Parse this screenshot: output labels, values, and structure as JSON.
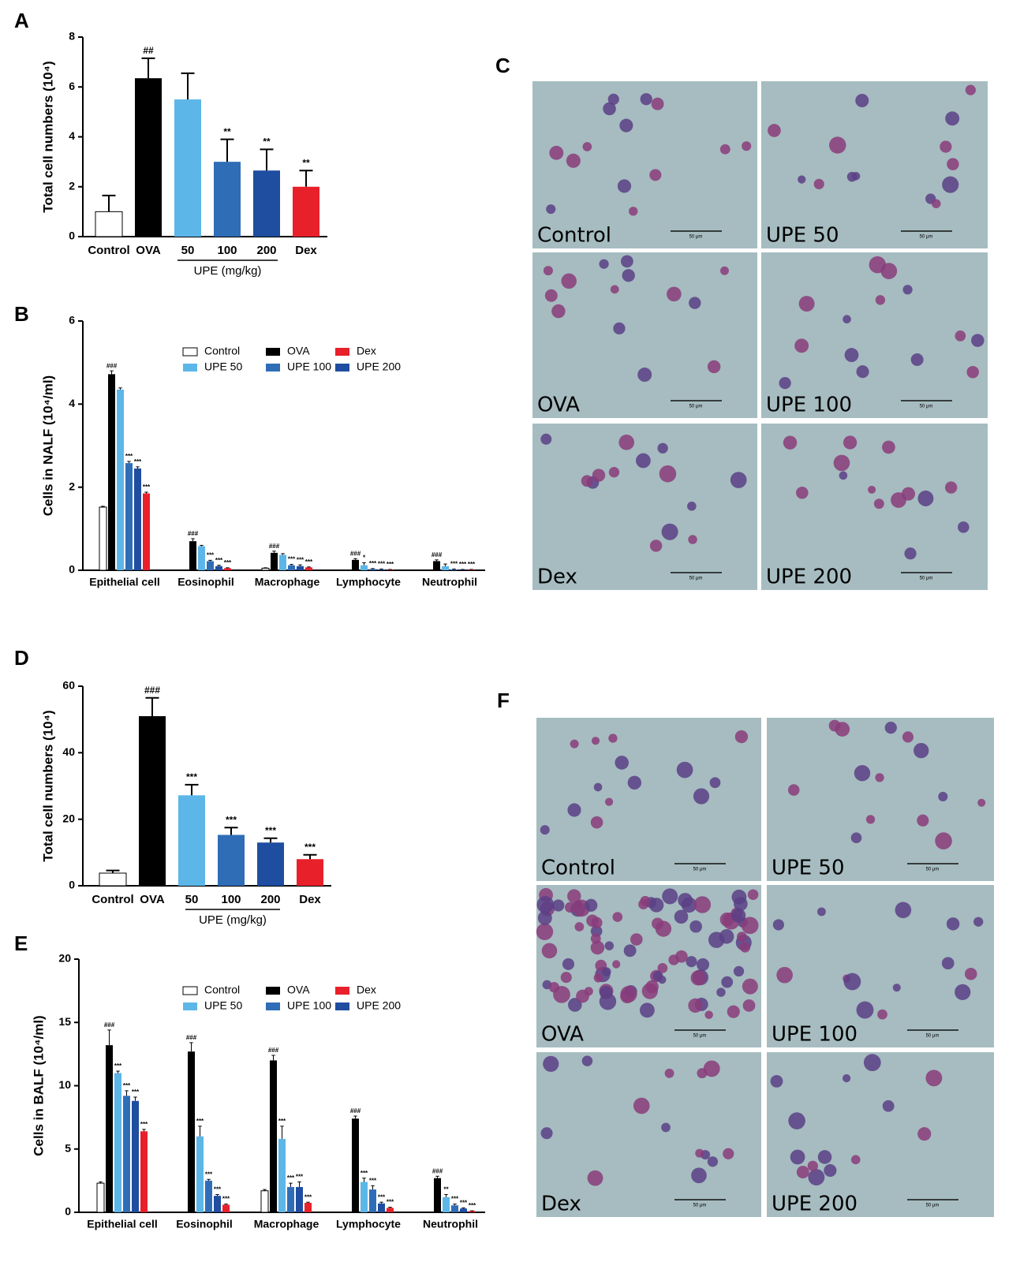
{
  "chart_data": [
    {
      "type": "bar",
      "label": "A",
      "ylabel": "Total cell numbers (10⁴)",
      "categories": [
        "Control",
        "OVA",
        "50",
        "100",
        "200",
        "Dex"
      ],
      "group_label": "UPE (mg/kg)",
      "values": [
        1.0,
        6.35,
        5.5,
        3.0,
        2.65,
        2.0
      ],
      "errors": [
        0.65,
        0.8,
        1.05,
        0.9,
        0.85,
        0.65
      ],
      "annotations": [
        null,
        "##",
        null,
        "**",
        "**",
        "**"
      ],
      "colors": [
        "#ffffff",
        "#000000",
        "#5cb6e8",
        "#2f6db7",
        "#1f4da0",
        "#e8202a"
      ],
      "ylim": [
        0,
        8
      ],
      "yticks": [
        0,
        2,
        4,
        6,
        8
      ]
    },
    {
      "type": "bar",
      "label": "B",
      "ylabel": "Cells in NALF (10⁴/ml)",
      "categories": [
        "Epithelial cell",
        "Eosinophil",
        "Macrophage",
        "Lymphocyte",
        "Neutrophil"
      ],
      "series": [
        {
          "name": "Control",
          "color": "#ffffff",
          "values": [
            1.52,
            0,
            0.05,
            0,
            0
          ],
          "errors": [
            0.02,
            0,
            0.01,
            0,
            0
          ],
          "annotations": [
            null,
            null,
            null,
            null,
            null
          ]
        },
        {
          "name": "OVA",
          "color": "#000000",
          "values": [
            4.72,
            0.7,
            0.42,
            0.25,
            0.22
          ],
          "errors": [
            0.08,
            0.06,
            0.04,
            0.03,
            0.03
          ],
          "annotations": [
            "###",
            "###",
            "###",
            "###",
            "###"
          ]
        },
        {
          "name": "UPE 50",
          "color": "#5cb6e8",
          "values": [
            4.35,
            0.58,
            0.37,
            0.12,
            0.1
          ],
          "errors": [
            0.04,
            0.02,
            0.03,
            0.06,
            0.05
          ],
          "annotations": [
            null,
            null,
            null,
            "*",
            null
          ]
        },
        {
          "name": "UPE 100",
          "color": "#2f6db7",
          "values": [
            2.58,
            0.22,
            0.12,
            0.03,
            0.02
          ],
          "errors": [
            0.04,
            0.02,
            0.02,
            0.01,
            0.01
          ],
          "annotations": [
            "***",
            "***",
            "***",
            "***",
            "***"
          ]
        },
        {
          "name": "UPE 200",
          "color": "#1f4da0",
          "values": [
            2.45,
            0.1,
            0.1,
            0.02,
            0.01
          ],
          "errors": [
            0.04,
            0.02,
            0.03,
            0.01,
            0.01
          ],
          "annotations": [
            "***",
            "***",
            "***",
            "***",
            "***"
          ]
        },
        {
          "name": "Dex",
          "color": "#e8202a",
          "values": [
            1.85,
            0.05,
            0.07,
            0.01,
            0.01
          ],
          "errors": [
            0.03,
            0.01,
            0.01,
            0.01,
            0.01
          ],
          "annotations": [
            "***",
            "***",
            "***",
            "***",
            "***"
          ]
        }
      ],
      "ylim": [
        0,
        6
      ],
      "yticks": [
        0,
        2,
        4,
        6
      ]
    },
    {
      "type": "bar",
      "label": "D",
      "ylabel": "Total cell numbers (10⁴)",
      "categories": [
        "Control",
        "OVA",
        "50",
        "100",
        "200",
        "Dex"
      ],
      "group_label": "UPE (mg/kg)",
      "values": [
        3.8,
        51,
        27.2,
        15.3,
        13.0,
        8.0
      ],
      "errors": [
        0.8,
        5.5,
        3.2,
        2.2,
        1.3,
        1.3
      ],
      "annotations": [
        null,
        "###",
        "***",
        "***",
        "***",
        "***"
      ],
      "colors": [
        "#ffffff",
        "#000000",
        "#5cb6e8",
        "#2f6db7",
        "#1f4da0",
        "#e8202a"
      ],
      "ylim": [
        0,
        60
      ],
      "yticks": [
        0,
        20,
        40,
        60
      ]
    },
    {
      "type": "bar",
      "label": "E",
      "ylabel": "Cells in BALF (10⁴/ml)",
      "categories": [
        "Epithelial cell",
        "Eosinophil",
        "Macrophage",
        "Lymphocyte",
        "Neutrophil"
      ],
      "series": [
        {
          "name": "Control",
          "color": "#ffffff",
          "values": [
            2.3,
            0,
            1.7,
            0,
            0
          ],
          "errors": [
            0.1,
            0,
            0.1,
            0,
            0
          ],
          "annotations": [
            null,
            null,
            null,
            null,
            null
          ]
        },
        {
          "name": "OVA",
          "color": "#000000",
          "values": [
            13.2,
            12.7,
            12.0,
            7.4,
            2.7
          ],
          "errors": [
            1.2,
            0.7,
            0.4,
            0.2,
            0.15
          ],
          "annotations": [
            "###",
            "###",
            "###",
            "###",
            "###"
          ]
        },
        {
          "name": "UPE 50",
          "color": "#5cb6e8",
          "values": [
            11.0,
            6.0,
            5.8,
            2.4,
            1.2
          ],
          "errors": [
            0.15,
            0.8,
            1.0,
            0.3,
            0.2
          ],
          "annotations": [
            "***",
            "***",
            "***",
            "***",
            "**"
          ]
        },
        {
          "name": "UPE 100",
          "color": "#2f6db7",
          "values": [
            9.2,
            2.5,
            2.0,
            1.8,
            0.55
          ],
          "errors": [
            0.4,
            0.1,
            0.3,
            0.3,
            0.1
          ],
          "annotations": [
            "***",
            "***",
            "***",
            "***",
            "***"
          ]
        },
        {
          "name": "UPE 200",
          "color": "#1f4da0",
          "values": [
            8.8,
            1.3,
            2.0,
            0.7,
            0.3
          ],
          "errors": [
            0.3,
            0.1,
            0.4,
            0.1,
            0.05
          ],
          "annotations": [
            "***",
            "***",
            "***",
            "***",
            "***"
          ]
        },
        {
          "name": "Dex",
          "color": "#e8202a",
          "values": [
            6.4,
            0.6,
            0.75,
            0.35,
            0.1
          ],
          "errors": [
            0.15,
            0.05,
            0.05,
            0.05,
            0.02
          ],
          "annotations": [
            "***",
            "***",
            "***",
            "***",
            "***"
          ]
        }
      ],
      "ylim": [
        0,
        20
      ],
      "yticks": [
        0,
        5,
        10,
        15,
        20
      ]
    }
  ],
  "micrographs": [
    {
      "label": "C",
      "images": [
        {
          "caption": "Control",
          "scale": "50 μm"
        },
        {
          "caption": "UPE 50",
          "scale": "50 μm"
        },
        {
          "caption": "OVA",
          "scale": "50 μm"
        },
        {
          "caption": "UPE 100",
          "scale": "50 μm"
        },
        {
          "caption": "Dex",
          "scale": "50 μm"
        },
        {
          "caption": "UPE 200",
          "scale": "50 μm"
        }
      ]
    },
    {
      "label": "F",
      "images": [
        {
          "caption": "Control",
          "scale": "50 μm"
        },
        {
          "caption": "UPE 50",
          "scale": "50 μm"
        },
        {
          "caption": "OVA",
          "scale": "50 μm"
        },
        {
          "caption": "UPE 100",
          "scale": "50 μm"
        },
        {
          "caption": "Dex",
          "scale": "50 μm"
        },
        {
          "caption": "UPE 200",
          "scale": "50 μm"
        }
      ]
    }
  ]
}
